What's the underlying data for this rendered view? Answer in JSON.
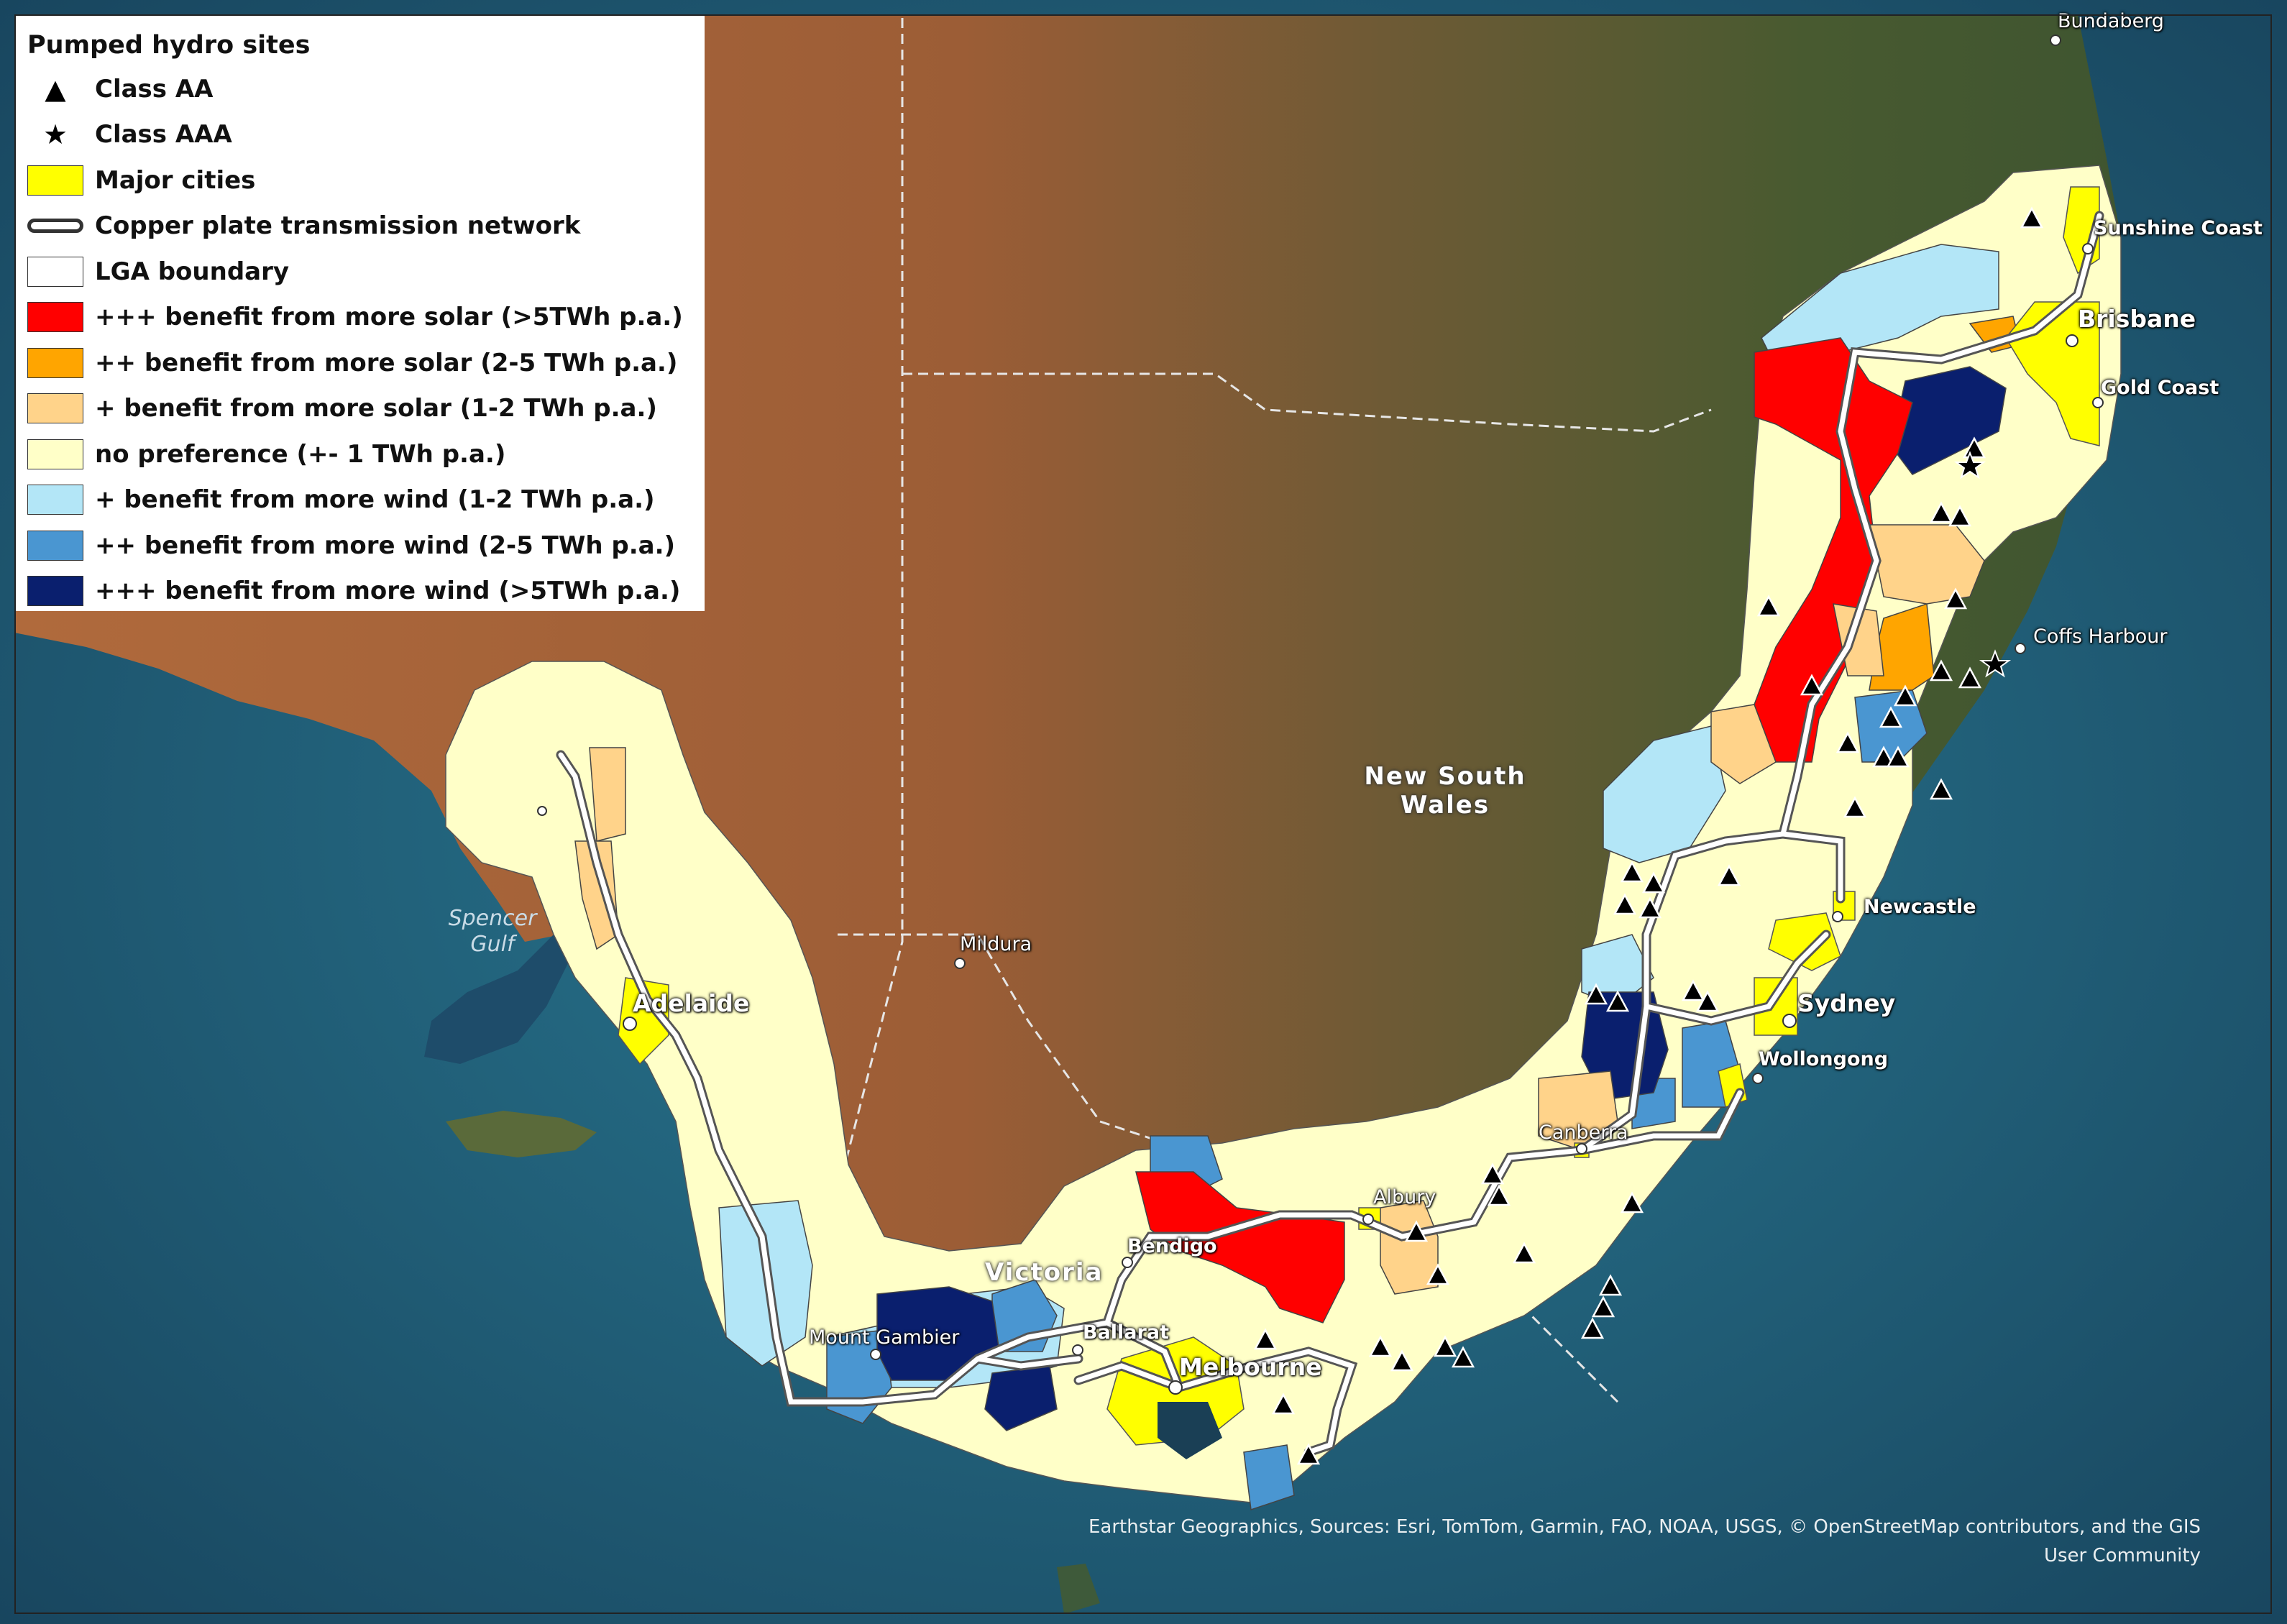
{
  "legend": {
    "title": "Pumped hydro sites",
    "items": [
      {
        "kind": "triangle",
        "label": "Class AA"
      },
      {
        "kind": "star",
        "label": "Class AAA"
      },
      {
        "kind": "swatch",
        "color": "#ffff00",
        "label": "Major cities"
      },
      {
        "kind": "pipe",
        "label": "Copper plate transmission network"
      },
      {
        "kind": "swatch",
        "color": "#ffffff",
        "label": "LGA boundary"
      },
      {
        "kind": "swatch",
        "color": "#ff0000",
        "label": "+++ benefit from more solar (>5TWh p.a.)"
      },
      {
        "kind": "swatch",
        "color": "#ffa500",
        "label": "++ benefit from more solar (2-5 TWh p.a.)"
      },
      {
        "kind": "swatch",
        "color": "#ffd38a",
        "label": "+ benefit from more solar (1-2 TWh p.a.)"
      },
      {
        "kind": "swatch",
        "color": "#ffffc8",
        "label": "no preference (+- 1 TWh p.a.)"
      },
      {
        "kind": "swatch",
        "color": "#b3e6f7",
        "label": "+ benefit from more wind (1-2 TWh p.a.)"
      },
      {
        "kind": "swatch",
        "color": "#4a96d1",
        "label": "++ benefit from more wind (2-5 TWh p.a.)"
      },
      {
        "kind": "swatch",
        "color": "#0a1f6e",
        "label": "+++ benefit from more wind (>5TWh p.a.)"
      }
    ]
  },
  "places": {
    "bundaberg": "Bundaberg",
    "sunshine_coast": "Sunshine Coast",
    "brisbane": "Brisbane",
    "gold_coast": "Gold Coast",
    "coffs_harbour": "Coffs Harbour",
    "newcastle": "Newcastle",
    "sydney": "Sydney",
    "wollongong": "Wollongong",
    "canberra": "Canberra",
    "albury": "Albury",
    "bendigo": "Bendigo",
    "ballarat": "Ballarat",
    "melbourne": "Melbourne",
    "mount_gambier": "Mount Gambier",
    "mildura": "Mildura",
    "adelaide": "Adelaide"
  },
  "regions": {
    "nsw": "New South\nWales",
    "victoria": "Victoria"
  },
  "water": {
    "spencer_gulf": "Spencer\nGulf"
  },
  "credit": "Earthstar Geographics, Sources: Esri, TomTom, Garmin, FAO, NOAA, USGS, © OpenStreetMap contributors, and the GIS User Community",
  "colors": {
    "ocean": "#1f5f78",
    "land_arid": "#a4633a",
    "land_green": "#4e5e34",
    "no_preference": "#ffffc8",
    "solar_high": "#ff0000",
    "solar_mid": "#ffa500",
    "solar_low": "#ffd38a",
    "wind_low": "#b3e6f7",
    "wind_mid": "#4a96d1",
    "wind_high": "#0a1f6e",
    "cities": "#ffff00"
  }
}
